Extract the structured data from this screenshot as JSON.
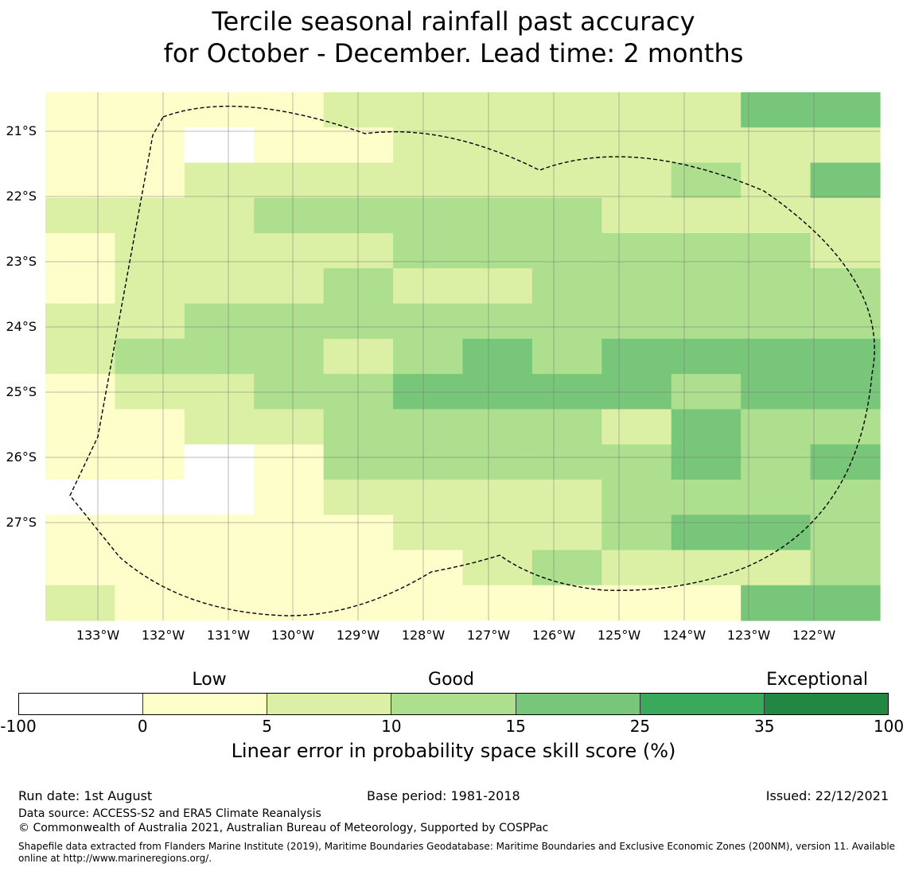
{
  "title": {
    "line1": "Tercile seasonal rainfall past accuracy",
    "line2": "for October - December. Lead time: 2 months"
  },
  "map": {
    "lon_labels": [
      "133°W",
      "132°W",
      "131°W",
      "130°W",
      "129°W",
      "128°W",
      "127°W",
      "126°W",
      "125°W",
      "124°W",
      "123°W",
      "122°W"
    ],
    "lat_labels": [
      "21°S",
      "22°S",
      "23°S",
      "24°S",
      "25°S",
      "26°S",
      "27°S"
    ],
    "boundary": "dashed line",
    "category_colors": {
      "0": "#ffffff",
      "1": "#fefecb",
      "2": "#dbf0a4",
      "3": "#addf8e",
      "4": "#78c679",
      "5": "#3aa95b",
      "6": "#218743"
    },
    "grid": [
      "111122222244",
      "110112222222",
      "112222222324",
      "222333332222",
      "122223333332",
      "122232233333",
      "223333333333",
      "233323434444",
      "122334444344",
      "112233332433",
      "110133333434",
      "000122223333",
      "111112223443",
      "111111232223",
      "211111111144"
    ]
  },
  "colorbar": {
    "categories": [
      "Low",
      "Good",
      "Exceptional"
    ],
    "ticks": [
      "-100",
      "0",
      "5",
      "10",
      "15",
      "25",
      "35",
      "100"
    ],
    "colors": [
      "#ffffff",
      "#fefecb",
      "#dbf0a4",
      "#addf8e",
      "#78c679",
      "#3aa95b",
      "#218743"
    ],
    "label": "Linear error in probability space skill score (%)"
  },
  "footer": {
    "run_date": "Run date: 1st August",
    "base_period": "Base period: 1981-2018",
    "issued": "Issued: 22/12/2021",
    "data_source": "Data source: ACCESS-S2 and ERA5 Climate Reanalysis",
    "copyright": "© Commonwealth of Australia 2021, Australian Bureau of Meteorology, Supported by COSPPac",
    "shapefile": "Shapefile data extracted from Flanders Marine Institute (2019), Maritime Boundaries Geodatabase: Maritime Boundaries and Exclusive Economic Zones (200NM), version 11. Available online at http://www.marineregions.org/."
  }
}
